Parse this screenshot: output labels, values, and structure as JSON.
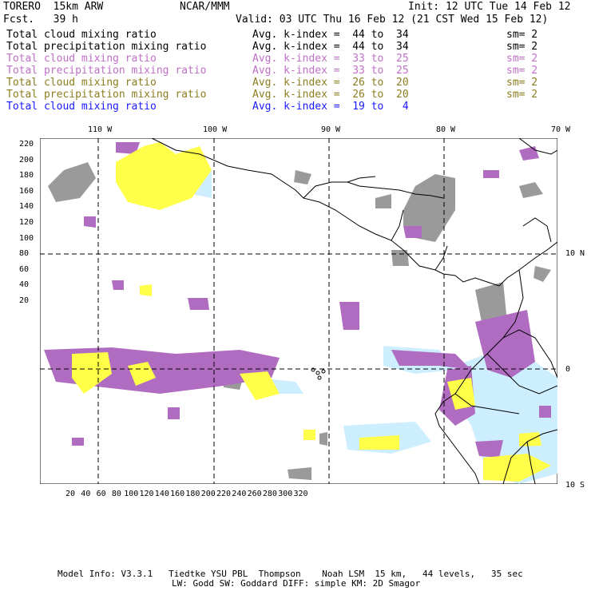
{
  "header": {
    "model": "TORERO  15km ARW",
    "org": "NCAR/MMM",
    "init": "Init: 12 UTC Tue 14 Feb 12",
    "fcst": "Fcst.   39 h",
    "valid": "Valid: 03 UTC Thu 16 Feb 12 (21 CST Wed 15 Feb 12)"
  },
  "legend": [
    {
      "label": "Total cloud mixing ratio",
      "kindex": "Avg. k-index =  44 to  34",
      "sm": "sm= 2",
      "color": "#000000"
    },
    {
      "label": "Total precipitation mixing ratio",
      "kindex": "Avg. k-index =  44 to  34",
      "sm": "sm= 2",
      "color": "#000000"
    },
    {
      "label": "Total cloud mixing ratio",
      "kindex": "Avg. k-index =  33 to  25",
      "sm": "sm= 2",
      "color": "#c070c8"
    },
    {
      "label": "Total precipitation mixing ratio",
      "kindex": "Avg. k-index =  33 to  25",
      "sm": "sm= 2",
      "color": "#c070c8"
    },
    {
      "label": "Total cloud mixing ratio",
      "kindex": "Avg. k-index =  26 to  20",
      "sm": "sm= 2",
      "color": "#8c7d1e"
    },
    {
      "label": "Total precipitation mixing ratio",
      "kindex": "Avg. k-index =  26 to  20",
      "sm": "sm= 2",
      "color": "#8c7d1e"
    },
    {
      "label": "Total cloud mixing ratio",
      "kindex": "Avg. k-index =  19 to   4",
      "sm": "",
      "color": "#1a1aff"
    }
  ],
  "axes": {
    "top_lon_labels": [
      "110 W",
      "100 W",
      "90 W",
      "80 W",
      "70 W"
    ],
    "right_lat_labels": [
      "10 N",
      "0",
      "10 S"
    ],
    "y_ticks": [
      "220",
      "200",
      "180",
      "160",
      "140",
      "120",
      "100",
      "80",
      "60",
      "40",
      "20"
    ],
    "x_ticks": [
      "20",
      "40",
      "60",
      "80",
      "100",
      "120",
      "140",
      "160",
      "180",
      "200",
      "220",
      "240",
      "260",
      "280",
      "300",
      "320"
    ]
  },
  "colors": {
    "gray_cloud": "#9a9a9a",
    "purple": "#b06cc0",
    "yellow": "#ffff4a",
    "lightblue": "#cceeff"
  },
  "footer": {
    "line1": "Model Info: V3.3.1   Tiedtke YSU PBL  Thompson    Noah LSM  15 km,   44 levels,   35 sec",
    "line2": "LW: Godd SW: Goddard DIFF: simple KM: 2D Smagor"
  }
}
